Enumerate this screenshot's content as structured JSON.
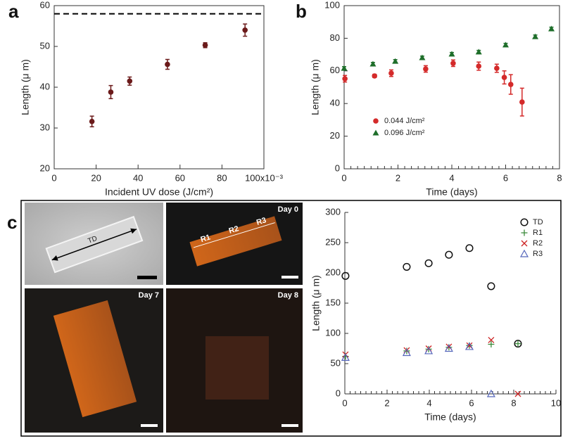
{
  "chart_data": [
    {
      "type": "scatter",
      "panel_label": "a",
      "xlabel": "Incident UV dose (J/cm²)",
      "ylabel": "Length (μ m)",
      "xlim": [
        0,
        100
      ],
      "ylim": [
        20,
        60
      ],
      "xticks": [
        0,
        20,
        40,
        60,
        80,
        {
          "value": 100,
          "label": "100x10⁻³"
        }
      ],
      "yticks": [
        20,
        30,
        40,
        50,
        60
      ],
      "frame": true,
      "minor_ticks": false,
      "hline": 58,
      "x": [
        18,
        27,
        36,
        54,
        72,
        91
      ],
      "series": [
        {
          "color": "#6b1a1a",
          "marker": "circle",
          "values": [
            31.6,
            38.8,
            41.5,
            45.6,
            50.3,
            54.0
          ],
          "errors": [
            1.3,
            1.6,
            1.0,
            1.2,
            0.6,
            1.5
          ]
        }
      ]
    },
    {
      "type": "scatter",
      "panel_label": "b",
      "xlabel": "Time (days)",
      "ylabel": "Length (μ m)",
      "xlim": [
        0,
        8
      ],
      "ylim": [
        0,
        100
      ],
      "xticks": [
        0,
        2,
        4,
        6,
        8
      ],
      "yticks": [
        0,
        20,
        40,
        60,
        80,
        100
      ],
      "frame": true,
      "minor_ticks": true,
      "legend": "lower left",
      "series": [
        {
          "name": "0.044 J/cm²",
          "color": "#d42a2a",
          "marker": "circle",
          "x": [
            0.03,
            1.13,
            1.75,
            3.03,
            4.05,
            5.0,
            5.67,
            5.95,
            6.19,
            6.61
          ],
          "values": [
            55.2,
            56.9,
            58.6,
            61.2,
            64.7,
            62.9,
            61.6,
            56.0,
            51.7,
            40.9
          ],
          "errors": [
            2,
            1,
            2,
            2,
            2,
            2.5,
            2.5,
            4,
            6,
            8.5
          ]
        },
        {
          "name": "0.096 J/cm²",
          "color": "#1e6e2a",
          "marker": "triangle",
          "x": [
            0,
            1.07,
            1.9,
            2.9,
            4.0,
            5.0,
            6.0,
            7.1,
            7.7
          ],
          "values": [
            61.6,
            64.2,
            65.9,
            68.1,
            70.3,
            71.6,
            75.9,
            81.0,
            85.8
          ],
          "errors": [
            1,
            1,
            1,
            1,
            1,
            1,
            1,
            1,
            1
          ]
        }
      ]
    },
    {
      "type": "scatter",
      "panel_label": "c",
      "xlabel": "Time (days)",
      "ylabel": "Length (μ m)",
      "xlim": [
        0,
        10
      ],
      "ylim": [
        0,
        300
      ],
      "xticks": [
        0,
        2,
        4,
        6,
        8,
        10
      ],
      "yticks": [
        0,
        50,
        100,
        150,
        200,
        250,
        300
      ],
      "frame": false,
      "minor_ticks": true,
      "legend": "upper right",
      "x": [
        0.03,
        2.93,
        3.97,
        4.93,
        5.9,
        6.93,
        8.2
      ],
      "series": [
        {
          "name": "TD",
          "color": "#111111",
          "marker": "open-circle",
          "values": [
            195,
            210,
            216,
            230,
            241,
            178,
            83
          ]
        },
        {
          "name": "R1",
          "color": "#3a8a3a",
          "marker": "plus",
          "values": [
            62,
            71,
            74,
            77,
            80,
            82,
            83
          ]
        },
        {
          "name": "R2",
          "color": "#cc2222",
          "marker": "x",
          "values": [
            65,
            72,
            75,
            78,
            80,
            89,
            0
          ]
        },
        {
          "name": "R3",
          "color": "#5566bb",
          "marker": "open-triangle",
          "values": [
            60,
            68,
            71,
            75,
            78,
            0,
            null
          ]
        }
      ]
    }
  ],
  "micrographs": [
    {
      "annotations": [
        "TD"
      ]
    },
    {
      "label": "Day 0",
      "annotations": [
        "R1",
        "R2",
        "R3"
      ]
    },
    {
      "label": "Day 7"
    },
    {
      "label": "Day 8"
    }
  ]
}
